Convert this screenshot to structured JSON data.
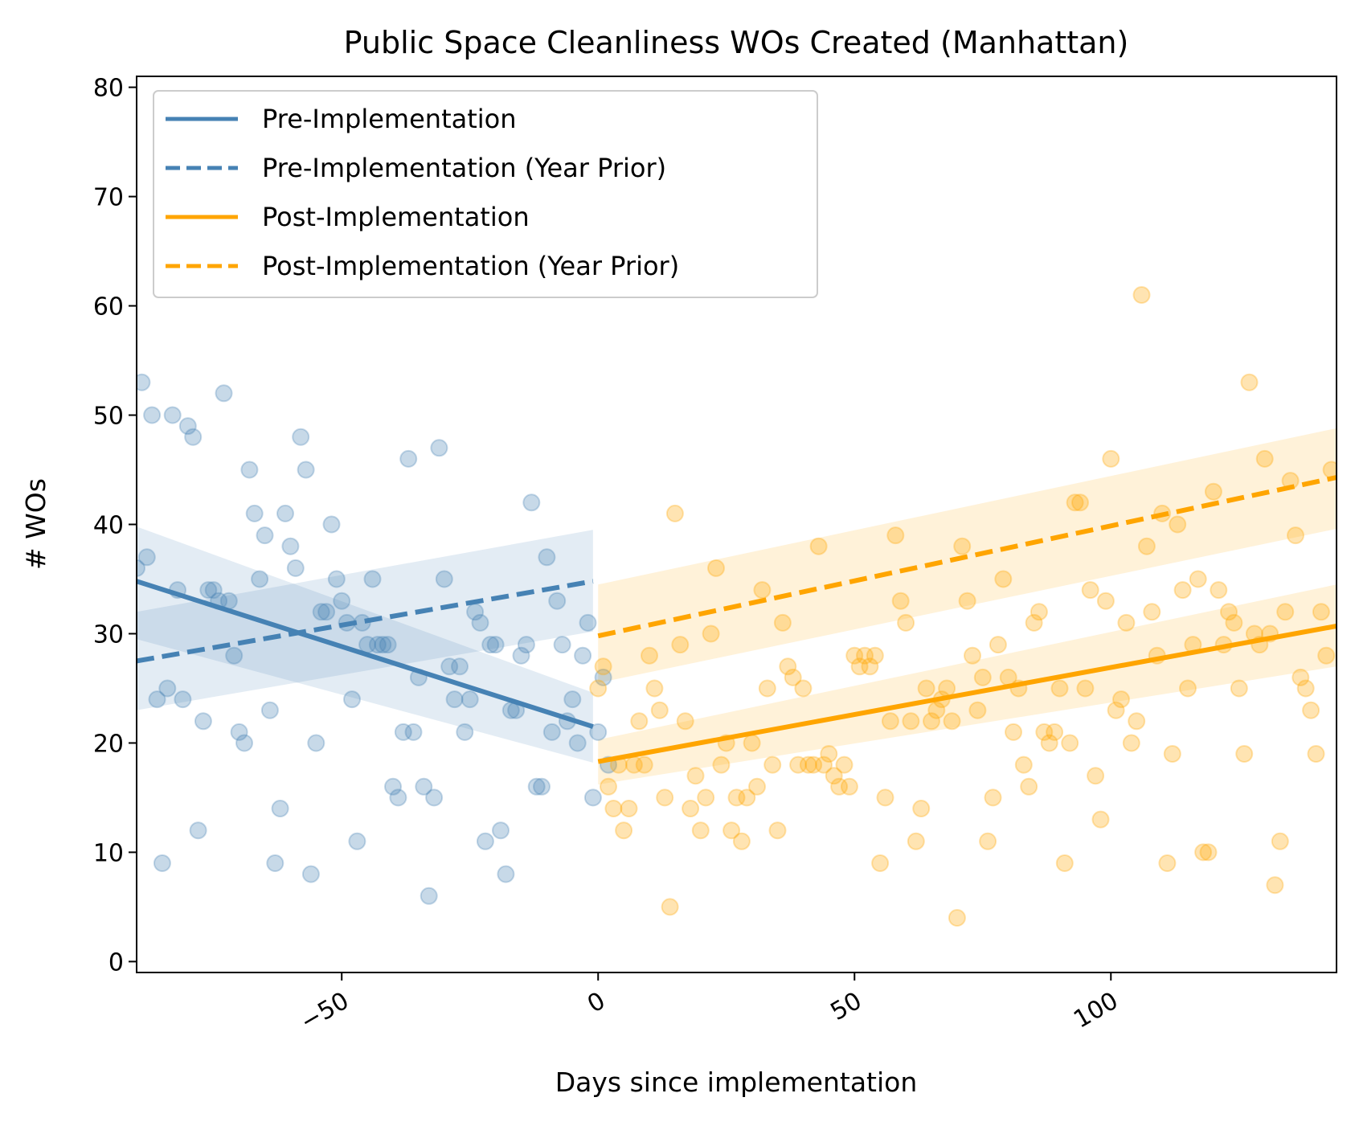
{
  "chart_data": {
    "type": "scatter",
    "title": "Public Space Cleanliness WOs Created (Manhattan)",
    "xlabel": "Days since implementation",
    "ylabel": "# WOs",
    "xlim": [
      -90,
      144
    ],
    "ylim": [
      -1,
      81
    ],
    "xticks": [
      -50,
      0,
      50,
      100
    ],
    "xtick_labels": [
      "−50",
      "0",
      "50",
      "100"
    ],
    "yticks": [
      0,
      10,
      20,
      30,
      40,
      50,
      60,
      70,
      80
    ],
    "ytick_labels": [
      "0",
      "10",
      "20",
      "30",
      "40",
      "50",
      "60",
      "70",
      "80"
    ],
    "grid": false,
    "legend_position": "top-left",
    "colors": {
      "pre": "#4682b4",
      "post": "#ffa500"
    },
    "legend": [
      {
        "label": "Pre-Implementation",
        "color": "#4682b4",
        "style": "solid"
      },
      {
        "label": "Pre-Implementation (Year Prior)",
        "color": "#4682b4",
        "style": "dashed"
      },
      {
        "label": "Post-Implementation",
        "color": "#ffa500",
        "style": "solid"
      },
      {
        "label": "Post-Implementation (Year Prior)",
        "color": "#ffa500",
        "style": "dashed"
      }
    ],
    "regression_lines": [
      {
        "label": "Pre-Implementation",
        "color": "#4682b4",
        "style": "solid",
        "x": [
          -90,
          -1
        ],
        "y": [
          34.8,
          21.5
        ],
        "ci_lower": [
          29.5,
          18.2
        ],
        "ci_upper": [
          39.8,
          24.6
        ]
      },
      {
        "label": "Pre-Implementation (Year Prior)",
        "color": "#4682b4",
        "style": "dashed",
        "x": [
          -90,
          -1
        ],
        "y": [
          27.5,
          34.8
        ],
        "ci_lower": [
          23.0,
          30.2
        ],
        "ci_upper": [
          32.0,
          39.5
        ]
      },
      {
        "label": "Post-Implementation",
        "color": "#ffa500",
        "style": "solid",
        "x": [
          0,
          144
        ],
        "y": [
          18.3,
          30.7
        ],
        "ci_lower": [
          16.2,
          27.0
        ],
        "ci_upper": [
          20.3,
          34.5
        ]
      },
      {
        "label": "Post-Implementation (Year Prior)",
        "color": "#ffa500",
        "style": "dashed",
        "x": [
          0,
          144
        ],
        "y": [
          29.8,
          44.3
        ],
        "ci_lower": [
          25.5,
          39.6
        ],
        "ci_upper": [
          34.5,
          48.8
        ]
      }
    ],
    "scatter_series": [
      {
        "name": "Pre-Implementation",
        "color": "#4682b4",
        "points": [
          [
            -90,
            36
          ],
          [
            -89,
            53
          ],
          [
            -88,
            37
          ],
          [
            -87,
            50
          ],
          [
            -86,
            24
          ],
          [
            -85,
            9
          ],
          [
            -84,
            25
          ],
          [
            -83,
            50
          ],
          [
            -82,
            34
          ],
          [
            -81,
            24
          ],
          [
            -80,
            49
          ],
          [
            -79,
            48
          ],
          [
            -78,
            12
          ],
          [
            -77,
            22
          ],
          [
            -76,
            34
          ],
          [
            -75,
            34
          ],
          [
            -74,
            33
          ],
          [
            -73,
            52
          ],
          [
            -72,
            33
          ],
          [
            -71,
            28
          ],
          [
            -70,
            21
          ],
          [
            -69,
            20
          ],
          [
            -68,
            45
          ],
          [
            -67,
            41
          ],
          [
            -66,
            35
          ],
          [
            -65,
            39
          ],
          [
            -64,
            23
          ],
          [
            -63,
            9
          ],
          [
            -62,
            14
          ],
          [
            -61,
            41
          ],
          [
            -60,
            38
          ],
          [
            -59,
            36
          ],
          [
            -58,
            48
          ],
          [
            -57,
            45
          ],
          [
            -56,
            8
          ],
          [
            -55,
            20
          ],
          [
            -54,
            32
          ],
          [
            -53,
            32
          ],
          [
            -52,
            40
          ],
          [
            -51,
            35
          ],
          [
            -50,
            33
          ],
          [
            -49,
            31
          ],
          [
            -48,
            24
          ],
          [
            -47,
            11
          ],
          [
            -46,
            31
          ],
          [
            -45,
            29
          ],
          [
            -44,
            35
          ],
          [
            -43,
            29
          ],
          [
            -42,
            29
          ],
          [
            -41,
            29
          ],
          [
            -40,
            16
          ],
          [
            -39,
            15
          ],
          [
            -38,
            21
          ],
          [
            -37,
            46
          ],
          [
            -36,
            21
          ],
          [
            -35,
            26
          ],
          [
            -34,
            16
          ],
          [
            -33,
            6
          ],
          [
            -32,
            15
          ],
          [
            -31,
            47
          ],
          [
            -30,
            35
          ],
          [
            -29,
            27
          ],
          [
            -28,
            24
          ],
          [
            -27,
            27
          ],
          [
            -26,
            21
          ],
          [
            -25,
            24
          ],
          [
            -24,
            32
          ],
          [
            -23,
            31
          ],
          [
            -22,
            11
          ],
          [
            -21,
            29
          ],
          [
            -20,
            29
          ],
          [
            -19,
            12
          ],
          [
            -18,
            8
          ],
          [
            -17,
            23
          ],
          [
            -16,
            23
          ],
          [
            -15,
            28
          ],
          [
            -14,
            29
          ],
          [
            -13,
            42
          ],
          [
            -12,
            16
          ],
          [
            -11,
            16
          ],
          [
            -10,
            37
          ],
          [
            -9,
            21
          ],
          [
            -8,
            33
          ],
          [
            -7,
            29
          ],
          [
            -6,
            22
          ],
          [
            -5,
            24
          ],
          [
            -4,
            20
          ],
          [
            -3,
            28
          ],
          [
            -2,
            31
          ],
          [
            -1,
            15
          ],
          [
            0,
            21
          ],
          [
            1,
            26
          ],
          [
            2,
            18
          ]
        ]
      },
      {
        "name": "Post-Implementation",
        "color": "#ffa500",
        "points": [
          [
            0,
            25
          ],
          [
            1,
            27
          ],
          [
            2,
            16
          ],
          [
            3,
            14
          ],
          [
            4,
            18
          ],
          [
            5,
            12
          ],
          [
            6,
            14
          ],
          [
            7,
            18
          ],
          [
            8,
            22
          ],
          [
            9,
            18
          ],
          [
            10,
            28
          ],
          [
            11,
            25
          ],
          [
            12,
            23
          ],
          [
            13,
            15
          ],
          [
            14,
            5
          ],
          [
            15,
            41
          ],
          [
            16,
            29
          ],
          [
            17,
            22
          ],
          [
            18,
            14
          ],
          [
            19,
            17
          ],
          [
            20,
            12
          ],
          [
            21,
            15
          ],
          [
            22,
            30
          ],
          [
            23,
            36
          ],
          [
            24,
            18
          ],
          [
            25,
            20
          ],
          [
            26,
            12
          ],
          [
            27,
            15
          ],
          [
            28,
            11
          ],
          [
            29,
            15
          ],
          [
            30,
            20
          ],
          [
            31,
            16
          ],
          [
            32,
            34
          ],
          [
            33,
            25
          ],
          [
            34,
            18
          ],
          [
            35,
            12
          ],
          [
            36,
            31
          ],
          [
            37,
            27
          ],
          [
            38,
            26
          ],
          [
            39,
            18
          ],
          [
            40,
            25
          ],
          [
            41,
            18
          ],
          [
            42,
            18
          ],
          [
            43,
            38
          ],
          [
            44,
            18
          ],
          [
            45,
            19
          ],
          [
            46,
            17
          ],
          [
            47,
            16
          ],
          [
            48,
            18
          ],
          [
            49,
            16
          ],
          [
            50,
            28
          ],
          [
            51,
            27
          ],
          [
            52,
            28
          ],
          [
            53,
            27
          ],
          [
            54,
            28
          ],
          [
            55,
            9
          ],
          [
            56,
            15
          ],
          [
            57,
            22
          ],
          [
            58,
            39
          ],
          [
            59,
            33
          ],
          [
            60,
            31
          ],
          [
            61,
            22
          ],
          [
            62,
            11
          ],
          [
            63,
            14
          ],
          [
            64,
            25
          ],
          [
            65,
            22
          ],
          [
            66,
            23
          ],
          [
            67,
            24
          ],
          [
            68,
            25
          ],
          [
            69,
            22
          ],
          [
            70,
            4
          ],
          [
            71,
            38
          ],
          [
            72,
            33
          ],
          [
            73,
            28
          ],
          [
            74,
            23
          ],
          [
            75,
            26
          ],
          [
            76,
            11
          ],
          [
            77,
            15
          ],
          [
            78,
            29
          ],
          [
            79,
            35
          ],
          [
            80,
            26
          ],
          [
            81,
            21
          ],
          [
            82,
            25
          ],
          [
            83,
            18
          ],
          [
            84,
            16
          ],
          [
            85,
            31
          ],
          [
            86,
            32
          ],
          [
            87,
            21
          ],
          [
            88,
            20
          ],
          [
            89,
            21
          ],
          [
            90,
            25
          ],
          [
            91,
            9
          ],
          [
            92,
            20
          ],
          [
            93,
            42
          ],
          [
            94,
            42
          ],
          [
            95,
            25
          ],
          [
            96,
            34
          ],
          [
            97,
            17
          ],
          [
            98,
            13
          ],
          [
            99,
            33
          ],
          [
            100,
            46
          ],
          [
            101,
            23
          ],
          [
            102,
            24
          ],
          [
            103,
            31
          ],
          [
            104,
            20
          ],
          [
            105,
            22
          ],
          [
            106,
            61
          ],
          [
            107,
            38
          ],
          [
            108,
            32
          ],
          [
            109,
            28
          ],
          [
            110,
            41
          ],
          [
            111,
            9
          ],
          [
            112,
            19
          ],
          [
            113,
            40
          ],
          [
            114,
            34
          ],
          [
            115,
            25
          ],
          [
            116,
            29
          ],
          [
            117,
            35
          ],
          [
            118,
            10
          ],
          [
            119,
            10
          ],
          [
            120,
            43
          ],
          [
            121,
            34
          ],
          [
            122,
            29
          ],
          [
            123,
            32
          ],
          [
            124,
            31
          ],
          [
            125,
            25
          ],
          [
            126,
            19
          ],
          [
            127,
            53
          ],
          [
            128,
            30
          ],
          [
            129,
            29
          ],
          [
            130,
            46
          ],
          [
            131,
            30
          ],
          [
            132,
            7
          ],
          [
            133,
            11
          ],
          [
            134,
            32
          ],
          [
            135,
            44
          ],
          [
            136,
            39
          ],
          [
            137,
            26
          ],
          [
            138,
            25
          ],
          [
            139,
            23
          ],
          [
            140,
            19
          ],
          [
            141,
            32
          ],
          [
            142,
            28
          ],
          [
            143,
            45
          ]
        ]
      }
    ]
  }
}
